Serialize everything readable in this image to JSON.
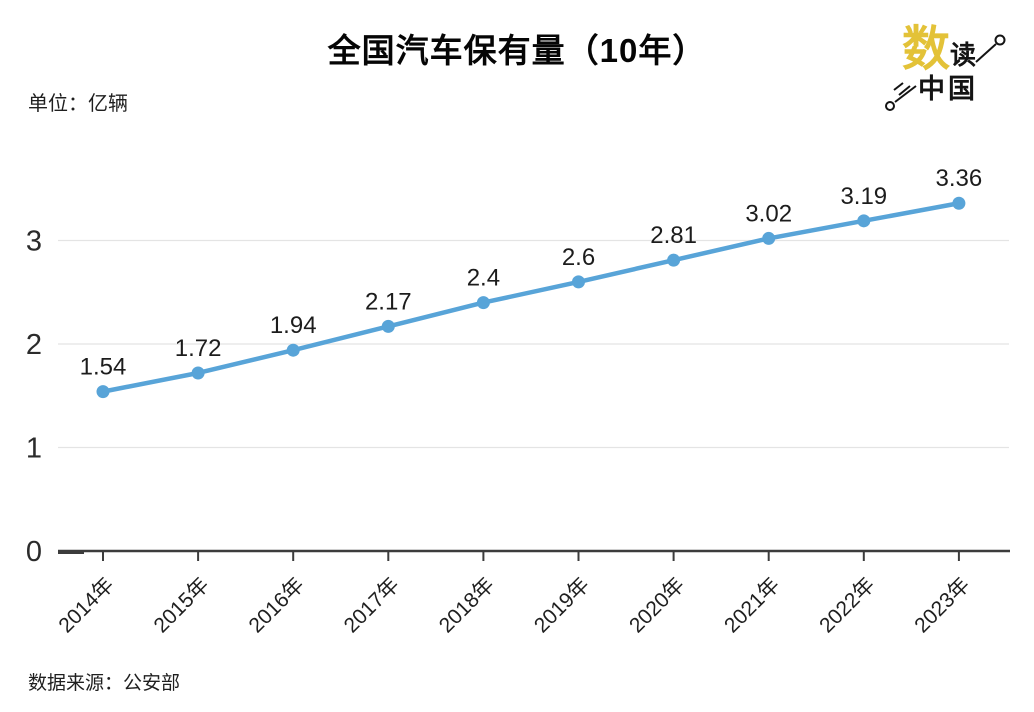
{
  "title": "全国汽车保有量（10年）",
  "unit_label": "单位：亿辆",
  "source_label": "数据来源：公安部",
  "logo": {
    "char_big": "数",
    "char_small": "读",
    "char_bottom": "中国",
    "gold_color": "#E3C238",
    "ink_color": "#141414"
  },
  "chart_data": {
    "type": "line",
    "title": "全国汽车保有量（10年）",
    "unit": "亿辆",
    "categories": [
      "2014年",
      "2015年",
      "2016年",
      "2017年",
      "2018年",
      "2019年",
      "2020年",
      "2021年",
      "2022年",
      "2023年"
    ],
    "values": [
      1.54,
      1.72,
      1.94,
      2.17,
      2.4,
      2.6,
      2.81,
      3.02,
      3.19,
      3.36
    ],
    "value_labels": [
      "1.54",
      "1.72",
      "1.94",
      "2.17",
      "2.4",
      "2.6",
      "2.81",
      "3.02",
      "3.19",
      "3.36"
    ],
    "yticks": [
      0,
      1,
      2,
      3
    ],
    "ylim": [
      0,
      3.6
    ],
    "grid": true,
    "legend_position": "none",
    "line_color": "#58A4D8",
    "marker_color": "#58A4D8",
    "grid_color": "#E4E4E4",
    "axis_color": "#3C3C3C",
    "tick_label_color": "#2B2B2B",
    "value_label_color": "#1C1C1C",
    "source": "公安部"
  }
}
